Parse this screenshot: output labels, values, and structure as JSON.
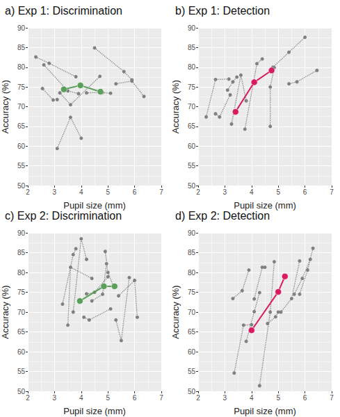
{
  "chart_data": [
    {
      "type": "line",
      "title": "a) Exp 1: Discrimination",
      "x_label": "Pupil size (mm)",
      "y_label": "Accuracy (%)",
      "xlim": [
        2,
        7
      ],
      "xticks": [
        2,
        3,
        4,
        5,
        6,
        7
      ],
      "ylim": [
        50,
        90
      ],
      "yticks": [
        50,
        55,
        60,
        65,
        70,
        75,
        80,
        85,
        90
      ],
      "grid": true,
      "series": [
        {
          "color": "#808080",
          "line_style": "dotted",
          "marker": "circle",
          "x": [
            2.3,
            2.8,
            3.8
          ],
          "values": [
            82.6,
            81.0,
            77.6
          ]
        },
        {
          "color": "#808080",
          "line_style": "dotted",
          "marker": "circle",
          "x": [
            2.6,
            3.5,
            3.9
          ],
          "values": [
            80.6,
            74.0,
            73.3
          ]
        },
        {
          "color": "#808080",
          "line_style": "dotted",
          "marker": "circle",
          "x": [
            2.55,
            2.95,
            3.1
          ],
          "values": [
            74.6,
            71.7,
            71.8
          ]
        },
        {
          "color": "#808080",
          "line_style": "dotted",
          "marker": "circle",
          "x": [
            3.2,
            3.6,
            4.7
          ],
          "values": [
            73.5,
            70.5,
            77.7
          ]
        },
        {
          "color": "#808080",
          "line_style": "dotted",
          "marker": "circle",
          "x": [
            3.1,
            3.6,
            4.0
          ],
          "values": [
            59.4,
            67.3,
            62.0
          ]
        },
        {
          "color": "#808080",
          "line_style": "dotted",
          "marker": "circle",
          "x": [
            4.5,
            5.6,
            5.9
          ],
          "values": [
            84.9,
            78.9,
            76.8
          ]
        },
        {
          "color": "#808080",
          "line_style": "dotted",
          "marker": "circle",
          "x": [
            4.2,
            4.8,
            5.1
          ],
          "values": [
            73.5,
            73.6,
            73.4
          ]
        },
        {
          "color": "#808080",
          "line_style": "dotted",
          "marker": "circle",
          "x": [
            5.3,
            5.9,
            6.35
          ],
          "values": [
            75.8,
            76.5,
            72.6
          ]
        },
        {
          "color": "#5a9e5a",
          "line_style": "solid",
          "marker": "circle",
          "x": [
            3.35,
            3.97,
            4.72
          ],
          "values": [
            74.4,
            75.4,
            73.8
          ]
        }
      ]
    },
    {
      "type": "line",
      "title": "b) Exp 1: Detection",
      "x_label": "Pupil size (mm)",
      "y_label": "Accuracy (%)",
      "xlim": [
        2,
        7
      ],
      "xticks": [
        2,
        3,
        4,
        5,
        6,
        7
      ],
      "ylim": [
        50,
        90
      ],
      "yticks": [
        50,
        55,
        60,
        65,
        70,
        75,
        80,
        85,
        90
      ],
      "grid": true,
      "series": [
        {
          "color": "#808080",
          "line_style": "dotted",
          "marker": "circle",
          "x": [
            2.3,
            2.65,
            3.15
          ],
          "values": [
            67.4,
            76.9,
            77.0
          ]
        },
        {
          "color": "#808080",
          "line_style": "dotted",
          "marker": "circle",
          "x": [
            2.65,
            2.8,
            3.2
          ],
          "values": [
            68.2,
            67.4,
            73.0
          ]
        },
        {
          "color": "#808080",
          "line_style": "dotted",
          "marker": "circle",
          "x": [
            3.1,
            3.3,
            3.45
          ],
          "values": [
            74.2,
            76.3,
            77.5
          ]
        },
        {
          "color": "#808080",
          "line_style": "dotted",
          "marker": "circle",
          "x": [
            3.25,
            3.6,
            3.8
          ],
          "values": [
            65.6,
            78.0,
            71.5
          ]
        },
        {
          "color": "#808080",
          "line_style": "dotted",
          "marker": "circle",
          "x": [
            3.75,
            4.2,
            4.4
          ],
          "values": [
            64.3,
            80.9,
            82.1
          ]
        },
        {
          "color": "#808080",
          "line_style": "dotted",
          "marker": "circle",
          "x": [
            4.7,
            4.7,
            4.85
          ],
          "values": [
            65.0,
            75.0,
            79.9
          ]
        },
        {
          "color": "#808080",
          "line_style": "dotted",
          "marker": "circle",
          "x": [
            4.8,
            5.4,
            6.0
          ],
          "values": [
            80.0,
            83.8,
            87.6
          ]
        },
        {
          "color": "#808080",
          "line_style": "dotted",
          "marker": "circle",
          "x": [
            5.4,
            5.7,
            6.45
          ],
          "values": [
            75.8,
            76.3,
            79.2
          ]
        },
        {
          "color": "#d81b60",
          "line_style": "solid",
          "marker": "circle",
          "x": [
            3.4,
            4.1,
            4.75
          ],
          "values": [
            68.7,
            76.2,
            79.2
          ]
        }
      ]
    },
    {
      "type": "line",
      "title": "c) Exp 2: Discrimination",
      "x_label": "Pupil size (mm)",
      "y_label": "Accuracy (%)",
      "xlim": [
        2,
        7
      ],
      "xticks": [
        2,
        3,
        4,
        5,
        6,
        7
      ],
      "ylim": [
        50,
        90
      ],
      "yticks": [
        50,
        55,
        60,
        65,
        70,
        75,
        80,
        85,
        90
      ],
      "grid": true,
      "series": [
        {
          "color": "#808080",
          "line_style": "dotted",
          "marker": "circle",
          "x": [
            3.3,
            3.7,
            3.8
          ],
          "values": [
            72.0,
            84.5,
            86.0
          ]
        },
        {
          "color": "#808080",
          "line_style": "dotted",
          "marker": "circle",
          "x": [
            3.5,
            3.6,
            4.4
          ],
          "values": [
            66.7,
            81.3,
            78.5
          ]
        },
        {
          "color": "#808080",
          "line_style": "dotted",
          "marker": "circle",
          "x": [
            3.7,
            4.0,
            4.2
          ],
          "values": [
            70.0,
            88.5,
            83.3
          ]
        },
        {
          "color": "#808080",
          "line_style": "dotted",
          "marker": "circle",
          "x": [
            4.1,
            4.3,
            5.1
          ],
          "values": [
            68.7,
            68.0,
            70.8
          ]
        },
        {
          "color": "#808080",
          "line_style": "dotted",
          "marker": "circle",
          "x": [
            4.2,
            4.5,
            5.0
          ],
          "values": [
            74.6,
            75.0,
            78.9
          ]
        },
        {
          "color": "#808080",
          "line_style": "dotted",
          "marker": "circle",
          "x": [
            4.4,
            4.8,
            4.95
          ],
          "values": [
            72.8,
            74.5,
            82.2
          ]
        },
        {
          "color": "#808080",
          "line_style": "dotted",
          "marker": "circle",
          "x": [
            4.9,
            5.0,
            5.2
          ],
          "values": [
            85.3,
            80.0,
            76.7
          ]
        },
        {
          "color": "#808080",
          "line_style": "dotted",
          "marker": "circle",
          "x": [
            5.3,
            5.5,
            5.8
          ],
          "values": [
            68.0,
            62.8,
            78.7
          ]
        },
        {
          "color": "#808080",
          "line_style": "dotted",
          "marker": "circle",
          "x": [
            5.4,
            6.0,
            6.1
          ],
          "values": [
            74.1,
            78.0,
            68.7
          ]
        },
        {
          "color": "#5a9e5a",
          "line_style": "solid",
          "marker": "circle",
          "x": [
            3.95,
            4.85,
            5.25
          ],
          "values": [
            72.8,
            76.5,
            76.5
          ]
        }
      ]
    },
    {
      "type": "line",
      "title": "d) Exp 2: Detection",
      "x_label": "Pupil size (mm)",
      "y_label": "Accuracy (%)",
      "xlim": [
        2,
        7
      ],
      "xticks": [
        2,
        3,
        4,
        5,
        6,
        7
      ],
      "ylim": [
        50,
        90
      ],
      "yticks": [
        50,
        55,
        60,
        65,
        70,
        75,
        80,
        85,
        90
      ],
      "grid": true,
      "series": [
        {
          "color": "#808080",
          "line_style": "dotted",
          "marker": "circle",
          "x": [
            3.3,
            3.65,
            3.9
          ],
          "values": [
            73.4,
            75.4,
            80.6
          ]
        },
        {
          "color": "#808080",
          "line_style": "dotted",
          "marker": "circle",
          "x": [
            3.35,
            3.7,
            4.0
          ],
          "values": [
            54.6,
            66.7,
            66.8
          ]
        },
        {
          "color": "#808080",
          "line_style": "dotted",
          "marker": "circle",
          "x": [
            3.8,
            4.1,
            4.3
          ],
          "values": [
            62.6,
            70.1,
            74.9
          ]
        },
        {
          "color": "#808080",
          "line_style": "dotted",
          "marker": "circle",
          "x": [
            4.1,
            4.4,
            4.5
          ],
          "values": [
            73.3,
            81.3,
            81.3
          ]
        },
        {
          "color": "#808080",
          "line_style": "dotted",
          "marker": "circle",
          "x": [
            4.3,
            4.7,
            4.85
          ],
          "values": [
            51.4,
            70.0,
            82.7
          ]
        },
        {
          "color": "#808080",
          "line_style": "dotted",
          "marker": "circle",
          "x": [
            4.6,
            4.9,
            5.0
          ],
          "values": [
            67.1,
            68.8,
            70.0
          ]
        },
        {
          "color": "#808080",
          "line_style": "dotted",
          "marker": "circle",
          "x": [
            5.1,
            5.5,
            5.8
          ],
          "values": [
            70.0,
            73.4,
            82.9
          ]
        },
        {
          "color": "#808080",
          "line_style": "dotted",
          "marker": "circle",
          "x": [
            5.6,
            5.9,
            6.2
          ],
          "values": [
            74.5,
            78.5,
            83.3
          ]
        },
        {
          "color": "#808080",
          "line_style": "dotted",
          "marker": "circle",
          "x": [
            5.8,
            6.1,
            6.3
          ],
          "values": [
            74.5,
            80.6,
            86.1
          ]
        },
        {
          "color": "#d81b60",
          "line_style": "solid",
          "marker": "circle",
          "x": [
            4.0,
            5.0,
            5.25
          ],
          "values": [
            65.4,
            75.1,
            79.0
          ]
        }
      ]
    }
  ]
}
